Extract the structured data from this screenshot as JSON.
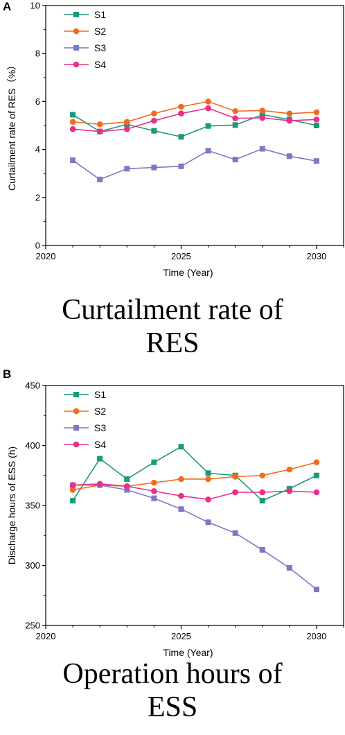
{
  "chart_data": [
    {
      "type": "line",
      "panel": "A",
      "caption_lines": [
        "Curtailment rate of",
        "RES"
      ],
      "xlabel": "Time (Year)",
      "ylabel": "Curtailment rate of RES（%）",
      "xlim": [
        2020,
        2031
      ],
      "ylim": [
        0,
        10
      ],
      "xticks": [
        2020,
        2025,
        2030
      ],
      "yticks": [
        0,
        2,
        4,
        6,
        8,
        10
      ],
      "legend_position": "top-left",
      "grid": false,
      "x": [
        2021,
        2022,
        2023,
        2024,
        2025,
        2026,
        2027,
        2028,
        2029,
        2030
      ],
      "series": [
        {
          "name": "S1",
          "color": "#1a9a7a",
          "marker": "square",
          "values": [
            5.45,
            4.75,
            5.05,
            4.78,
            4.53,
            4.98,
            5.02,
            5.45,
            5.25,
            5.0
          ]
        },
        {
          "name": "S2",
          "color": "#f26b1d",
          "marker": "circle",
          "values": [
            5.15,
            5.05,
            5.15,
            5.5,
            5.78,
            6.0,
            5.6,
            5.62,
            5.5,
            5.55
          ]
        },
        {
          "name": "S3",
          "color": "#7c78c4",
          "marker": "square",
          "values": [
            3.55,
            2.75,
            3.2,
            3.25,
            3.3,
            3.95,
            3.58,
            4.03,
            3.72,
            3.52
          ]
        },
        {
          "name": "S4",
          "color": "#e8308a",
          "marker": "circle",
          "values": [
            4.85,
            4.75,
            4.85,
            5.2,
            5.5,
            5.72,
            5.3,
            5.32,
            5.2,
            5.25
          ]
        }
      ]
    },
    {
      "type": "line",
      "panel": "B",
      "caption_lines": [
        "Operation hours of",
        "ESS"
      ],
      "xlabel": "Time (Year)",
      "ylabel": "Discharge hours of ESS (h)",
      "xlim": [
        2020,
        2031
      ],
      "ylim": [
        250,
        450
      ],
      "xticks": [
        2020,
        2025,
        2030
      ],
      "yticks": [
        250,
        300,
        350,
        400,
        450
      ],
      "legend_position": "top-left",
      "grid": false,
      "x": [
        2021,
        2022,
        2023,
        2024,
        2025,
        2026,
        2027,
        2028,
        2029,
        2030
      ],
      "series": [
        {
          "name": "S1",
          "color": "#1a9a7a",
          "marker": "square",
          "values": [
            354,
            389,
            372,
            386,
            399,
            377,
            375,
            354,
            364,
            375
          ]
        },
        {
          "name": "S2",
          "color": "#f26b1d",
          "marker": "circle",
          "values": [
            363,
            367,
            366,
            369,
            372,
            372,
            374,
            375,
            380,
            386
          ]
        },
        {
          "name": "S3",
          "color": "#7c78c4",
          "marker": "square",
          "values": [
            367,
            367,
            363,
            356,
            347,
            336,
            327,
            313,
            298,
            280
          ]
        },
        {
          "name": "S4",
          "color": "#e8308a",
          "marker": "circle",
          "values": [
            367,
            368,
            366,
            362,
            358,
            355,
            361,
            361,
            362,
            361
          ]
        }
      ]
    }
  ]
}
